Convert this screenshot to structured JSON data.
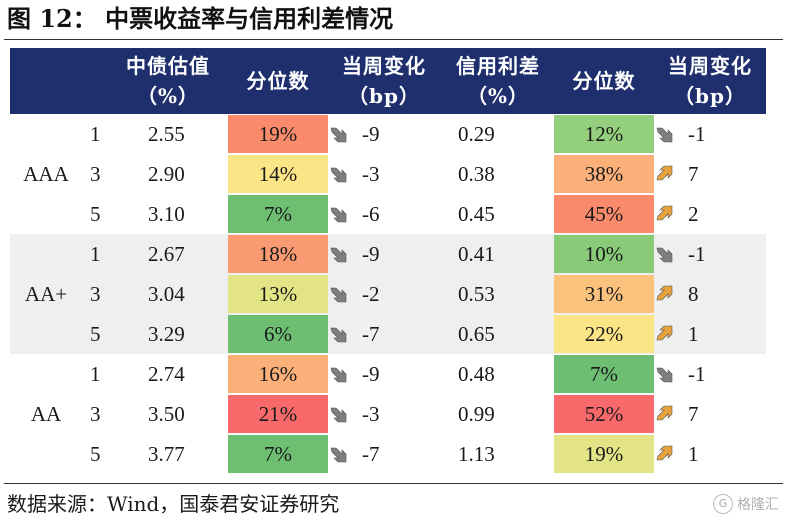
{
  "title": "图 12：  中票收益率与信用利差情况",
  "headers": [
    {
      "line1": "中债估值",
      "line2": "（%）"
    },
    {
      "line1": "分位数",
      "line2": ""
    },
    {
      "line1": "当周变化",
      "line2": "（bp）"
    },
    {
      "line1": "信用利差",
      "line2": "（%）"
    },
    {
      "line1": "分位数",
      "line2": ""
    },
    {
      "line1": "当周变化",
      "line2": "（bp）"
    }
  ],
  "groups": [
    {
      "rating": "AAA",
      "rows": [
        {
          "term": "1",
          "yield": "2.55",
          "yield_pct": "19%",
          "yield_pct_color": "#f98a6c",
          "yield_chg_dir": "down",
          "yield_chg": "-9",
          "spread": "0.29",
          "spread_pct": "12%",
          "spread_pct_color": "#93cf7c",
          "spread_chg_dir": "down",
          "spread_chg": "-1"
        },
        {
          "term": "3",
          "yield": "2.90",
          "yield_pct": "14%",
          "yield_pct_color": "#fbe586",
          "yield_chg_dir": "down",
          "yield_chg": "-3",
          "spread": "0.38",
          "spread_pct": "38%",
          "spread_pct_color": "#fbb079",
          "spread_chg_dir": "up",
          "spread_chg": "7"
        },
        {
          "term": "5",
          "yield": "3.10",
          "yield_pct": "7%",
          "yield_pct_color": "#6fbf73",
          "yield_chg_dir": "down",
          "yield_chg": "-6",
          "spread": "0.45",
          "spread_pct": "45%",
          "spread_pct_color": "#f98a6c",
          "spread_chg_dir": "up",
          "spread_chg": "2"
        }
      ]
    },
    {
      "rating": "AA+",
      "rows": [
        {
          "term": "1",
          "yield": "2.67",
          "yield_pct": "18%",
          "yield_pct_color": "#fa9a72",
          "yield_chg_dir": "down",
          "yield_chg": "-9",
          "spread": "0.41",
          "spread_pct": "10%",
          "spread_pct_color": "#88ca78",
          "spread_chg_dir": "down",
          "spread_chg": "-1"
        },
        {
          "term": "3",
          "yield": "3.04",
          "yield_pct": "13%",
          "yield_pct_color": "#e3e486",
          "yield_chg_dir": "down",
          "yield_chg": "-2",
          "spread": "0.53",
          "spread_pct": "31%",
          "spread_pct_color": "#fbc27e",
          "spread_chg_dir": "up",
          "spread_chg": "8"
        },
        {
          "term": "5",
          "yield": "3.29",
          "yield_pct": "6%",
          "yield_pct_color": "#6dbe72",
          "yield_chg_dir": "down",
          "yield_chg": "-7",
          "spread": "0.65",
          "spread_pct": "22%",
          "spread_pct_color": "#fbe586",
          "spread_chg_dir": "up",
          "spread_chg": "1"
        }
      ]
    },
    {
      "rating": "AA",
      "rows": [
        {
          "term": "1",
          "yield": "2.74",
          "yield_pct": "16%",
          "yield_pct_color": "#fbb079",
          "yield_chg_dir": "down",
          "yield_chg": "-9",
          "spread": "0.48",
          "spread_pct": "7%",
          "spread_pct_color": "#6dbe72",
          "spread_chg_dir": "down",
          "spread_chg": "-1"
        },
        {
          "term": "3",
          "yield": "3.50",
          "yield_pct": "21%",
          "yield_pct_color": "#f8696b",
          "yield_chg_dir": "down",
          "yield_chg": "-3",
          "spread": "0.99",
          "spread_pct": "52%",
          "spread_pct_color": "#f8696b",
          "spread_chg_dir": "up",
          "spread_chg": "7"
        },
        {
          "term": "5",
          "yield": "3.77",
          "yield_pct": "7%",
          "yield_pct_color": "#6fbf73",
          "yield_chg_dir": "down",
          "yield_chg": "-7",
          "spread": "1.13",
          "spread_pct": "19%",
          "spread_pct_color": "#e3e486",
          "spread_chg_dir": "up",
          "spread_chg": "1"
        }
      ]
    }
  ],
  "source": "数据来源：Wind，国泰君安证券研究",
  "watermark": "格隆汇",
  "arrow_colors": {
    "down": "#7f7f7f",
    "up": "#e6a23c"
  }
}
